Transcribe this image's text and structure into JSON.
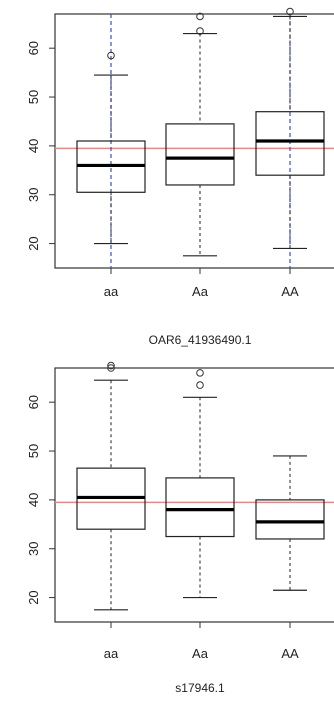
{
  "chart_data": [
    {
      "type": "boxplot",
      "title": "",
      "xlabel": "OAR6_41936490.1",
      "ylabel": "",
      "ylim": [
        15,
        67
      ],
      "yticks": [
        20,
        30,
        40,
        50,
        60
      ],
      "categories": [
        "aa",
        "Aa",
        "AA"
      ],
      "reference_line": 39.5,
      "boxes": [
        {
          "category": "aa",
          "whisker_low": 20,
          "q1": 30.5,
          "median": 36,
          "q3": 41,
          "whisker_high": 54.5,
          "outliers": [
            58.5
          ]
        },
        {
          "category": "Aa",
          "whisker_low": 17.5,
          "q1": 32,
          "median": 37.5,
          "q3": 44.5,
          "whisker_high": 63,
          "outliers": [
            63.5,
            66.5
          ]
        },
        {
          "category": "AA",
          "whisker_low": 19,
          "q1": 34,
          "median": 41,
          "q3": 47,
          "whisker_high": 66.5,
          "outliers": [
            67.5
          ]
        }
      ],
      "dashed_blue_categories": [
        "aa",
        "AA"
      ],
      "colors": {
        "reference_line": "#e08a8a",
        "blue_dashed": "#3a4fc0",
        "box": "#222222"
      }
    },
    {
      "type": "boxplot",
      "title": "",
      "xlabel": "s17946.1",
      "ylabel": "",
      "ylim": [
        15,
        67
      ],
      "yticks": [
        20,
        30,
        40,
        50,
        60
      ],
      "categories": [
        "aa",
        "Aa",
        "AA"
      ],
      "reference_line": 39.5,
      "boxes": [
        {
          "category": "aa",
          "whisker_low": 17.5,
          "q1": 34,
          "median": 40.5,
          "q3": 46.5,
          "whisker_high": 64.5,
          "outliers": [
            67,
            67.5
          ]
        },
        {
          "category": "Aa",
          "whisker_low": 20,
          "q1": 32.5,
          "median": 38,
          "q3": 44.5,
          "whisker_high": 61,
          "outliers": [
            63.5,
            66
          ]
        },
        {
          "category": "AA",
          "whisker_low": 21.5,
          "q1": 32,
          "median": 35.5,
          "q3": 40,
          "whisker_high": 49,
          "outliers": []
        }
      ],
      "dashed_blue_categories": [],
      "colors": {
        "reference_line": "#e08a8a",
        "blue_dashed": "#3a4fc0",
        "box": "#222222"
      }
    }
  ]
}
